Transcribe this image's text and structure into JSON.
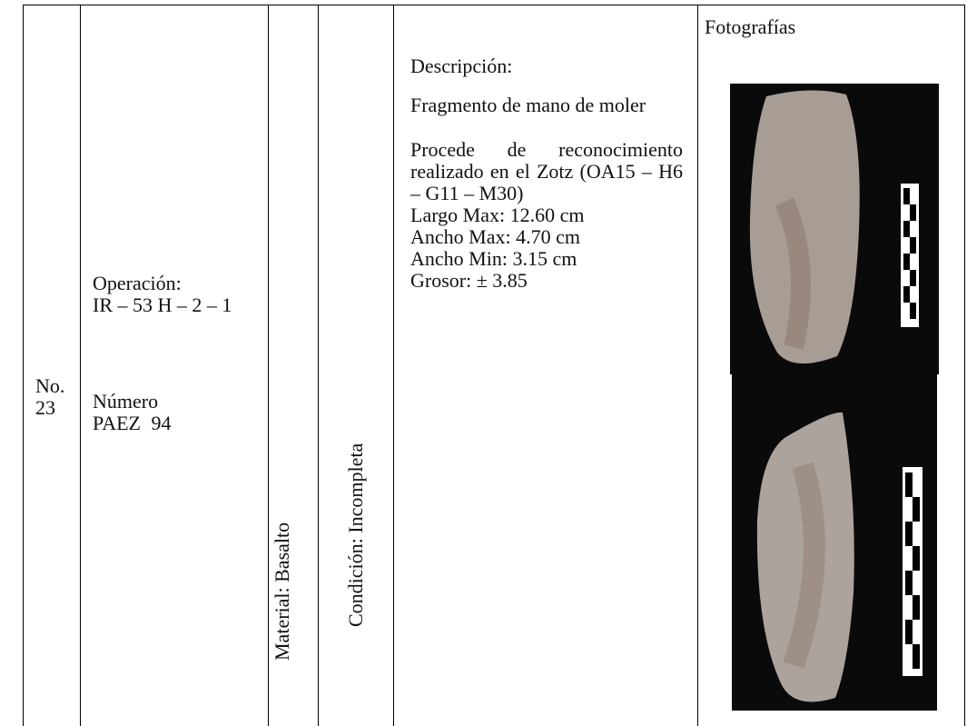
{
  "row": {
    "number": {
      "label": "No.",
      "value": "23"
    },
    "operation": {
      "label": "Operación:",
      "value": "IR – 53 H – 2 – 1"
    },
    "catalog": {
      "label": "Número",
      "value": "PAEZ 94"
    },
    "material": "Material: Basalto",
    "condition": "Condición:  Incompleta",
    "description": {
      "label": "Descripción:",
      "name": "Fragmento de mano de moler",
      "origin": "Procede de reconocimiento realizado en el Zotz (OA15 – H6 – G11 – M30)",
      "measures": [
        "Largo Max: 12.60 cm",
        "Ancho Max: 4.70 cm",
        "Ancho Min: 3.15 cm",
        "Grosor: ± 3.85"
      ]
    },
    "photos": {
      "label": "Fotografías"
    }
  }
}
